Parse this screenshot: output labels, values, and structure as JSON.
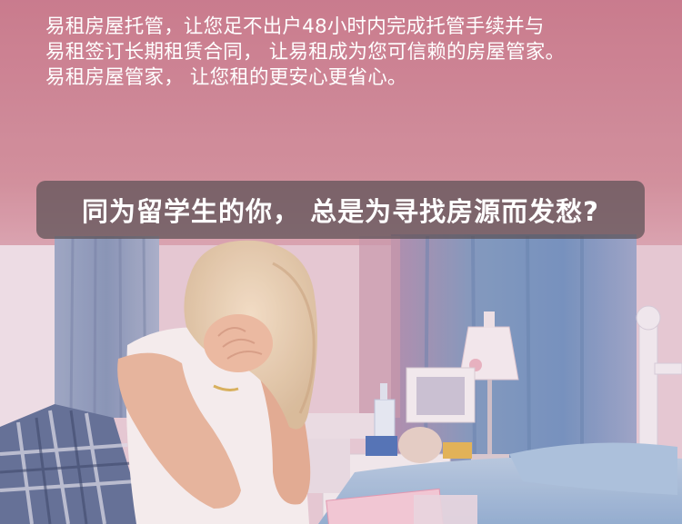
{
  "intro": {
    "lines": [
      "易租房屋托管，让您足不出户48小时内完成托管手续并与",
      "易租签订长期租赁合同，  让易租成为您可信赖的房屋管家。",
      "易租房屋管家，  让您租的更安心更省心。"
    ]
  },
  "headline": "同为留学生的你，  总是为寻找房源而发愁?",
  "photo": {
    "subject": "distressed-student-on-bed",
    "palette": {
      "pink": "#d2919d",
      "curtain_blue": "#7f9fc4",
      "lamp_white": "#f2ecee",
      "headline_box": "#5a5054"
    }
  }
}
